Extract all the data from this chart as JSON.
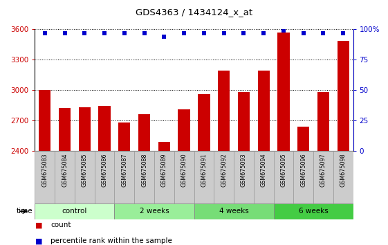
{
  "title": "GDS4363 / 1434124_x_at",
  "samples": [
    "GSM675083",
    "GSM675084",
    "GSM675085",
    "GSM675086",
    "GSM675087",
    "GSM675088",
    "GSM675089",
    "GSM675090",
    "GSM675091",
    "GSM675092",
    "GSM675093",
    "GSM675094",
    "GSM675095",
    "GSM675096",
    "GSM675097",
    "GSM675098"
  ],
  "counts": [
    3000,
    2820,
    2830,
    2840,
    2680,
    2760,
    2490,
    2810,
    2960,
    3190,
    2980,
    3190,
    3570,
    2640,
    2980,
    3490
  ],
  "percentiles": [
    97,
    97,
    97,
    97,
    97,
    97,
    94,
    97,
    97,
    97,
    97,
    97,
    99,
    97,
    97,
    97
  ],
  "ylim_left": [
    2400,
    3600
  ],
  "ylim_right": [
    0,
    100
  ],
  "yticks_left": [
    2400,
    2700,
    3000,
    3300,
    3600
  ],
  "yticks_right": [
    0,
    25,
    50,
    75,
    100
  ],
  "bar_color": "#cc0000",
  "dot_color": "#0000cc",
  "groups": [
    {
      "label": "control",
      "start": 0,
      "end": 4,
      "color": "#ccffcc"
    },
    {
      "label": "2 weeks",
      "start": 4,
      "end": 8,
      "color": "#99ee99"
    },
    {
      "label": "4 weeks",
      "start": 8,
      "end": 12,
      "color": "#77dd77"
    },
    {
      "label": "6 weeks",
      "start": 12,
      "end": 16,
      "color": "#44cc44"
    }
  ],
  "legend_count_label": "count",
  "legend_pct_label": "percentile rank within the sample",
  "bar_width": 0.6,
  "tick_bg_color": "#cccccc",
  "tick_border_color": "#999999"
}
